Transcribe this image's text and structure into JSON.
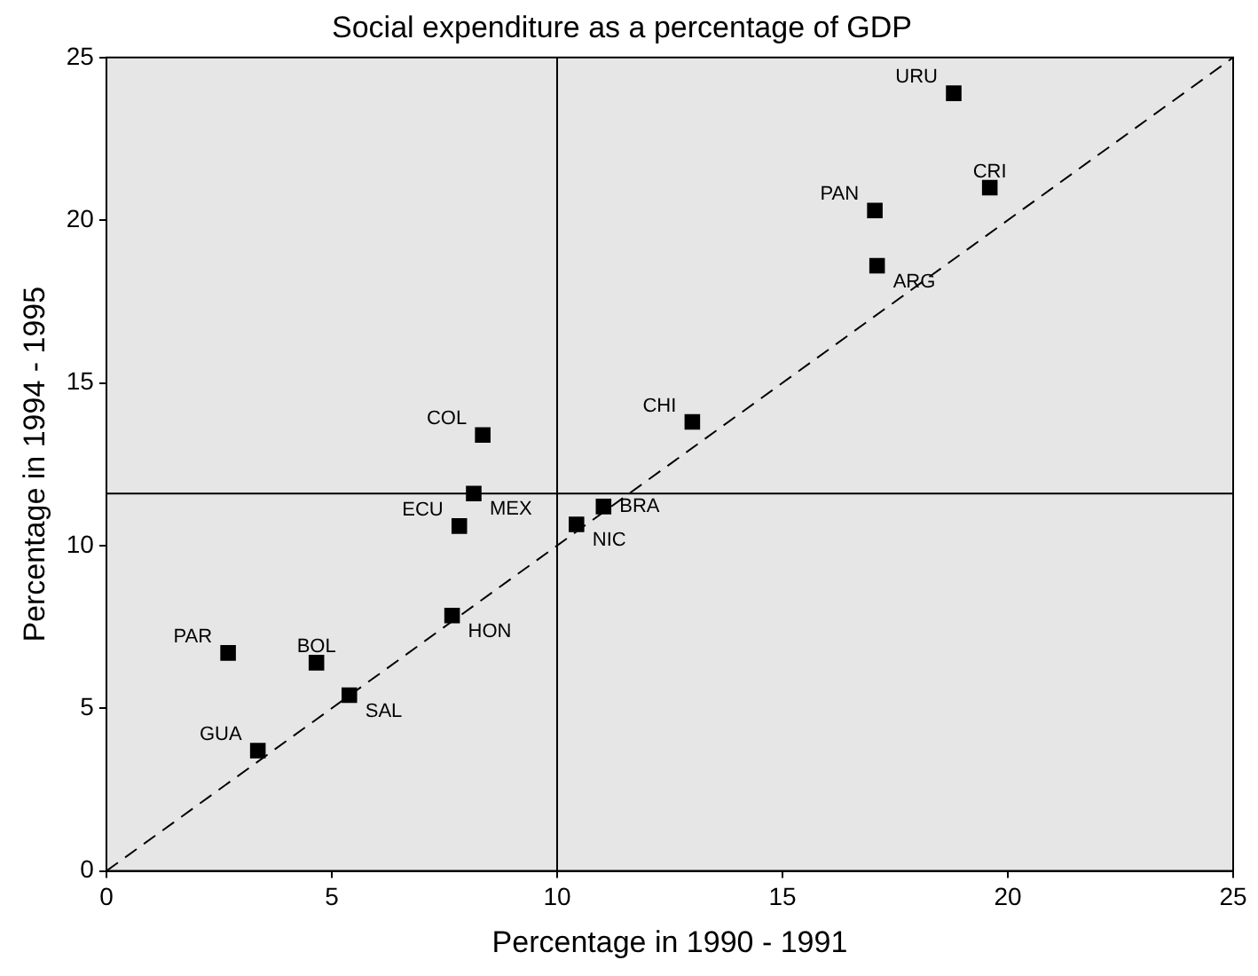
{
  "chart_data": {
    "type": "scatter",
    "title": "Social expenditure as a percentage of GDP",
    "xlabel": "Percentage in 1990 - 1991",
    "ylabel": "Percentage in 1994 - 1995",
    "xlim": [
      0,
      25
    ],
    "xticks": [
      0,
      5,
      10,
      15,
      20,
      25
    ],
    "ylim": [
      0,
      25
    ],
    "yticks": [
      0,
      5,
      10,
      15,
      20,
      25
    ],
    "grid": false,
    "legend": false,
    "series": [
      {
        "type": "scatter",
        "marker": "square",
        "color": "#000000",
        "x": [
          18.8,
          19.6,
          17.05,
          17.1,
          13.0,
          8.35,
          8.15,
          7.83,
          11.03,
          10.43,
          7.67,
          2.7,
          4.66,
          5.39,
          3.36
        ],
        "values": [
          23.9,
          21.0,
          20.3,
          18.6,
          13.8,
          13.4,
          11.6,
          10.6,
          11.2,
          10.65,
          7.85,
          6.7,
          6.4,
          5.4,
          3.7
        ]
      },
      {
        "type": "line",
        "marker": "none",
        "line_style": "dashed",
        "color": "#000000",
        "x": [
          0,
          25
        ],
        "values": [
          0,
          25
        ]
      }
    ],
    "ref_lines": [
      {
        "axis": "x",
        "value": 10,
        "color": "#000000"
      },
      {
        "axis": "y",
        "value": 11.6,
        "color": "#000000"
      }
    ],
    "annotations": [
      {
        "text": "URU",
        "x": 18.8,
        "y": 23.9
      },
      {
        "text": "CRI",
        "x": 19.6,
        "y": 21.0
      },
      {
        "text": "PAN",
        "x": 17.05,
        "y": 20.3
      },
      {
        "text": "ARG",
        "x": 17.1,
        "y": 18.6
      },
      {
        "text": "CHI",
        "x": 13.0,
        "y": 13.8
      },
      {
        "text": "COL",
        "x": 8.35,
        "y": 13.4
      },
      {
        "text": "MEX",
        "x": 8.15,
        "y": 11.6
      },
      {
        "text": "ECU",
        "x": 7.83,
        "y": 10.6
      },
      {
        "text": "BRA",
        "x": 11.03,
        "y": 11.2
      },
      {
        "text": "NIC",
        "x": 10.43,
        "y": 10.65
      },
      {
        "text": "HON",
        "x": 7.67,
        "y": 7.85
      },
      {
        "text": "PAR",
        "x": 2.7,
        "y": 6.7
      },
      {
        "text": "BOL",
        "x": 4.66,
        "y": 6.4
      },
      {
        "text": "SAL",
        "x": 5.39,
        "y": 5.4
      },
      {
        "text": "GUA",
        "x": 3.36,
        "y": 3.7
      }
    ]
  }
}
